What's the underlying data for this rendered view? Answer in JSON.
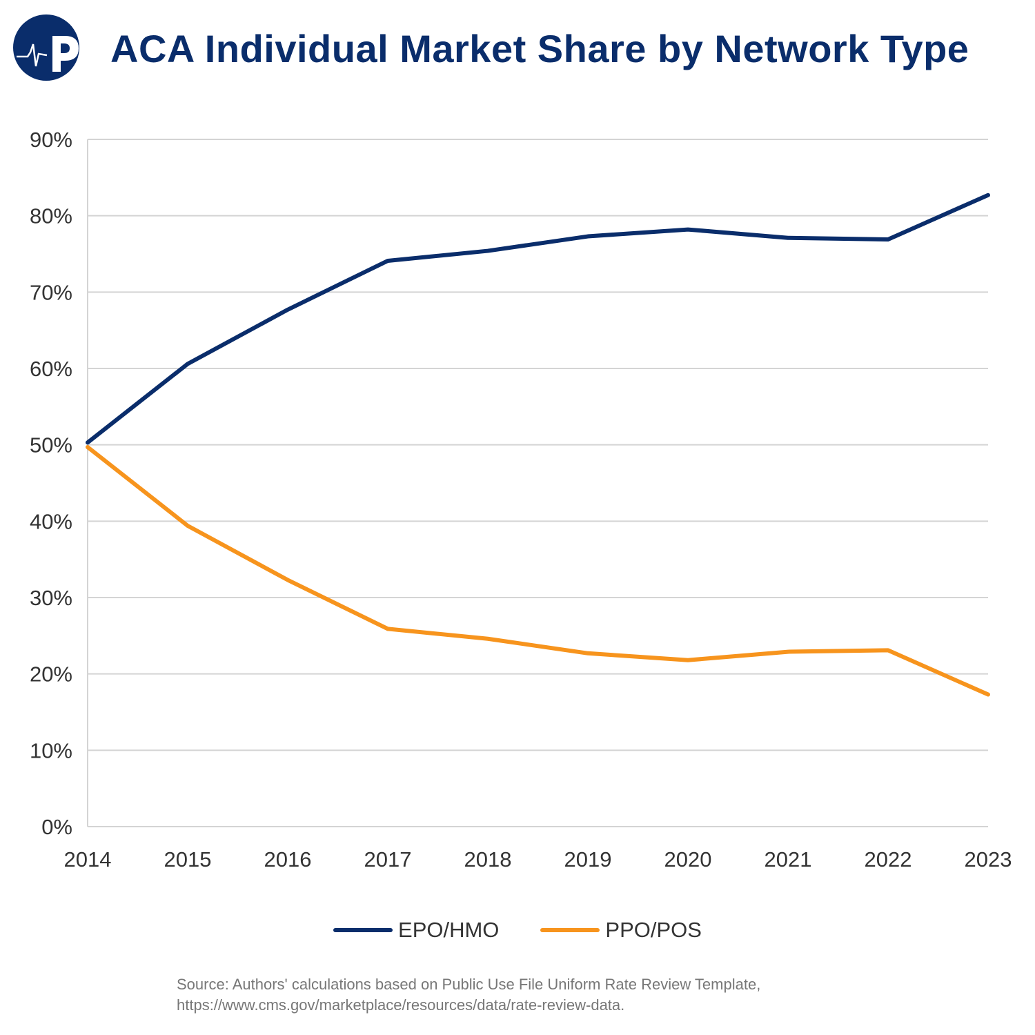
{
  "title": "ACA Individual Market Share by Network Type",
  "logo": {
    "text": "P",
    "icon": "heartbeat-p-logo",
    "color": "#0a2d6b"
  },
  "source": {
    "line1": "Source: Authors' calculations based on Public Use File Uniform Rate Review Template,",
    "line2": "https://www.cms.gov/marketplace/resources/data/rate-review-data."
  },
  "chart_data": {
    "type": "line",
    "title": "ACA Individual Market Share by Network Type",
    "x": [
      "2014",
      "2015",
      "2016",
      "2017",
      "2018",
      "2019",
      "2020",
      "2021",
      "2022",
      "2023"
    ],
    "ylim": [
      0,
      90
    ],
    "yticks": [
      "0%",
      "10%",
      "20%",
      "30%",
      "40%",
      "50%",
      "60%",
      "70%",
      "80%",
      "90%"
    ],
    "grid": true,
    "legend": "bottom",
    "series": [
      {
        "name": "EPO/HMO",
        "color": "#0a2d6b",
        "values": [
          50.3,
          60.6,
          67.7,
          74.1,
          75.4,
          77.3,
          78.2,
          77.1,
          76.9,
          82.7
        ]
      },
      {
        "name": "PPO/POS",
        "color": "#f7941d",
        "values": [
          49.7,
          39.4,
          32.3,
          25.9,
          24.6,
          22.7,
          21.8,
          22.9,
          23.1,
          17.3
        ]
      }
    ]
  }
}
